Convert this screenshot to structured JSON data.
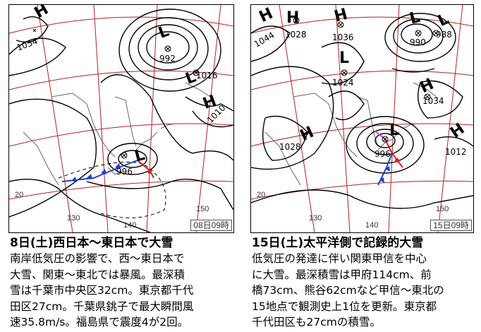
{
  "panels": [
    {
      "stamp": "08日09時",
      "pressure_labels": [
        "1054",
        "992",
        "1016",
        "1010",
        "996"
      ],
      "center_letters": [
        "H",
        "L",
        "L",
        "H",
        "L"
      ],
      "lat_labels": [
        "20"
      ],
      "lon_labels": [
        "130",
        "140",
        "150"
      ],
      "caption": {
        "title": "8日(土)西日本～東日本で大雪",
        "lines": [
          "南岸低気圧の影響で、西～東日本で",
          "大雪、関東～東北では暴風。最深積",
          "雪は千葉市中央区32cm。東京都千代",
          "田区27cm。千葉県銚子で最大瞬間風",
          "速35.8m/s。福島県で震度4が2回。"
        ]
      }
    },
    {
      "stamp": "15日09時",
      "pressure_labels": [
        "1044",
        "1028",
        "1036",
        "990",
        "988",
        "1024",
        "1034",
        "1028",
        "996",
        "1012"
      ],
      "center_letters": [
        "H",
        "H",
        "H",
        "L",
        "L",
        "L",
        "H",
        "H",
        "L",
        "H"
      ],
      "lat_labels": [
        "20"
      ],
      "lon_labels": [
        "130",
        "140",
        "150"
      ],
      "caption": {
        "title": "15日(土)太平洋側で記録的大雪",
        "lines": [
          "低気圧の発達に伴い関東甲信を中心",
          "に大雪。最深積雪は甲府114cm、前",
          "橋73cm、熊谷62cmなど甲信～東北の",
          "15地点で観測史上1位を更新。東京都",
          "千代田区も27cmの積雪。"
        ]
      }
    }
  ],
  "colors": {
    "isobar": "#000000",
    "grid": "#b22222",
    "cold_front": "#1f3fd0",
    "warm_front": "#e02020",
    "occluded_front": "#d040d0",
    "coast": "#555555"
  }
}
